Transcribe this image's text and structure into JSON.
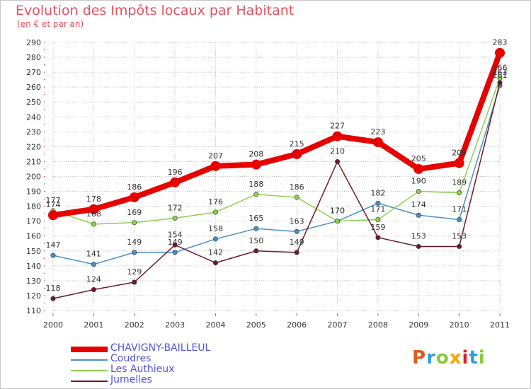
{
  "header": {
    "title": "Evolution des Impôts locaux par Habitant",
    "subtitle": "(en € et par an)"
  },
  "logo": {
    "text": "Proxiti",
    "colors": [
      "#e0591e",
      "#2f9fdb",
      "#8cc63f",
      "#f2a900",
      "#d6232d",
      "#2f9fdb",
      "#8cc63f"
    ]
  },
  "colors": {
    "title": "#e8515d",
    "legend_text": "#5353e0",
    "grid": "#bfbfbf",
    "axis_ticks": "#e05050"
  },
  "chart_data": {
    "type": "line",
    "title": "Evolution des Impôts locaux par Habitant",
    "subtitle": "(en € et par an)",
    "x": [
      "2000",
      "2001",
      "2002",
      "2003",
      "2004",
      "2005",
      "2006",
      "2007",
      "2008",
      "2009",
      "2010",
      "2011"
    ],
    "ylim": [
      110,
      290
    ],
    "yticks": [
      110,
      120,
      130,
      140,
      150,
      160,
      170,
      180,
      190,
      200,
      210,
      220,
      230,
      240,
      250,
      260,
      270,
      280,
      290
    ],
    "grid": true,
    "legend_position": "bottom-left",
    "series": [
      {
        "name": "CHAVIGNY-BAILLEUL",
        "color": "#e60000",
        "values": [
          174,
          178,
          186,
          196,
          207,
          208,
          215,
          227,
          223,
          205,
          209,
          283
        ]
      },
      {
        "name": "Coudres",
        "color": "#4a90c8",
        "values": [
          147,
          141,
          149,
          149,
          158,
          165,
          163,
          170,
          182,
          174,
          171,
          261
        ]
      },
      {
        "name": "Les Authieux",
        "color": "#8cd24e",
        "values": [
          177,
          168,
          169,
          172,
          176,
          188,
          186,
          170,
          171,
          190,
          189,
          266
        ]
      },
      {
        "name": "Jumelles",
        "color": "#6b1b25",
        "values": [
          118,
          124,
          129,
          154,
          142,
          150,
          149,
          210,
          159,
          153,
          153,
          263
        ]
      }
    ],
    "labels": [
      [
        "174",
        "178",
        "186",
        "196",
        "207",
        "208",
        "215",
        "227",
        "223",
        "205",
        "209",
        "283"
      ],
      [
        "147",
        "141",
        "149",
        "149",
        "158",
        "165",
        "163",
        "170",
        "182",
        "174",
        "171",
        "261"
      ],
      [
        "177",
        "168",
        "169",
        "172",
        "176",
        "188",
        "186",
        "170",
        "171",
        "190",
        "189",
        "266"
      ],
      [
        "118",
        "124",
        "129",
        "154",
        "142",
        "150",
        "149",
        "210",
        "159",
        "153",
        "153",
        "263"
      ]
    ]
  },
  "legend": [
    {
      "label": "CHAVIGNY-BAILLEUL"
    },
    {
      "label": "Coudres"
    },
    {
      "label": "Les Authieux"
    },
    {
      "label": "Jumelles"
    }
  ]
}
